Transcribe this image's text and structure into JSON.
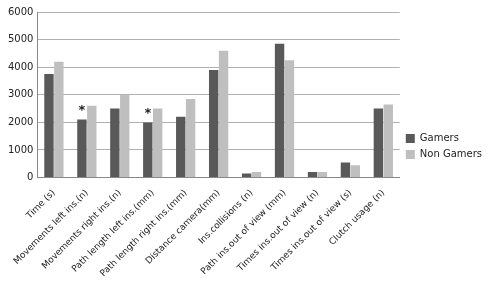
{
  "chart_data": {
    "type": "bar",
    "categories": [
      "Time (s)",
      "Movements left ins.(n)",
      "Movements right ins.(n)",
      "Path length left ins.(mm)",
      "Path length right ins.(mm)",
      "Distance camera(mm)",
      "Ins.collisions (n)",
      "Path ins.out of view (mm)",
      "Times ins.out of view (n)",
      "Times ins.out of view (s)",
      "Clutch usage (n)"
    ],
    "series": [
      {
        "name": "Gamers",
        "color": "#595959",
        "values": [
          3750,
          2100,
          2500,
          2000,
          2200,
          3900,
          150,
          4850,
          200,
          550,
          2500
        ]
      },
      {
        "name": "Non Gamers",
        "color": "#bfbfbf",
        "values": [
          4200,
          2600,
          3000,
          2500,
          2850,
          4600,
          200,
          4250,
          200,
          450,
          2650
        ]
      }
    ],
    "annotations": [
      {
        "category": "Movements left ins.(n)",
        "text": "*"
      },
      {
        "category": "Path length left ins.(mm)",
        "text": "*"
      }
    ],
    "ylim": [
      0,
      6000
    ],
    "yticks": [
      0,
      1000,
      2000,
      3000,
      4000,
      5000,
      6000
    ],
    "grid": true,
    "legend": "right"
  }
}
